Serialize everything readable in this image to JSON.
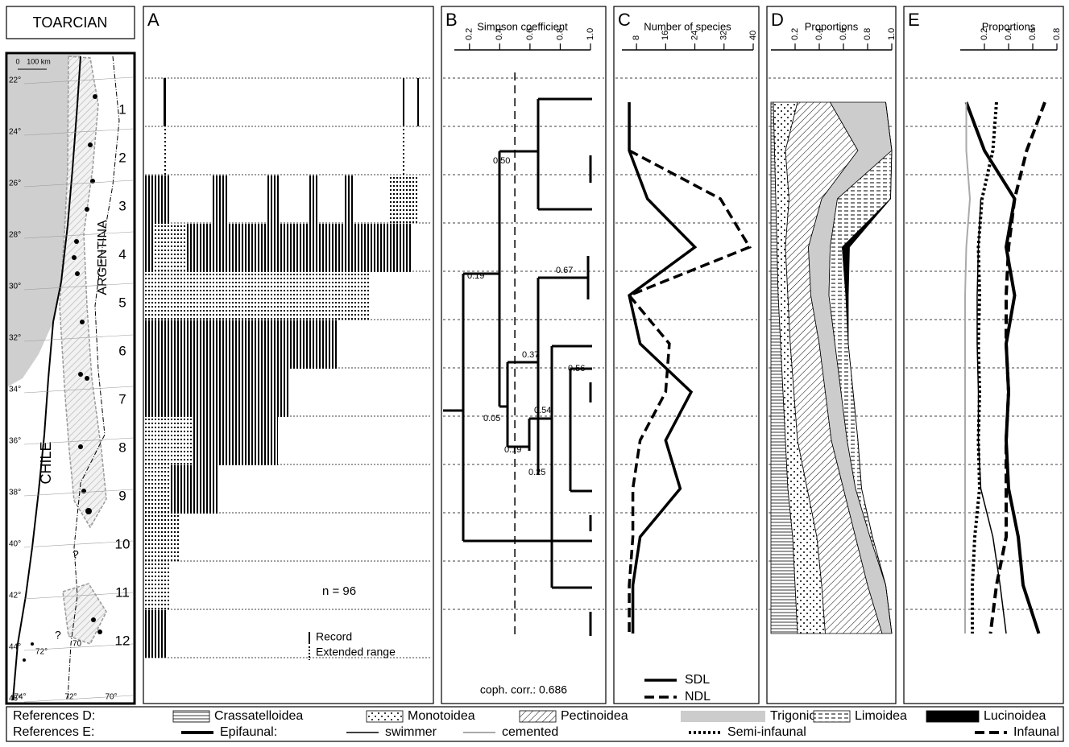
{
  "title": "TOARCIAN",
  "map": {
    "scale": [
      "0",
      "100 km"
    ],
    "latitudes": [
      "22°",
      "24°",
      "26°",
      "28°",
      "30°",
      "32°",
      "34°",
      "36°",
      "38°",
      "40°",
      "42°",
      "44°",
      "46°"
    ],
    "longitudes": [
      "74°",
      "72°",
      "70°"
    ],
    "inner_labels": [
      "72°",
      "70"
    ],
    "countries": [
      "CHILE",
      "ARGENTINA"
    ],
    "queries": [
      "?",
      "?"
    ],
    "zones": [
      "1",
      "2",
      "3",
      "4",
      "5",
      "6",
      "7",
      "8",
      "9",
      "10",
      "11",
      "12"
    ]
  },
  "chart_data": [
    {
      "type": "range",
      "panel": "A",
      "note": "n = 96",
      "legend": [
        "Record",
        "Extended range"
      ]
    },
    {
      "type": "dendrogram",
      "panel": "B",
      "title": "Simpson coefficient",
      "xlim": [
        0.1,
        1.0
      ],
      "xticks": [
        0.2,
        0.4,
        0.6,
        0.8,
        {
          "value": 1.0,
          "label": "1.0"
        }
      ],
      "cutoff": 0.5,
      "node_labels": [
        "0.50",
        "0.19",
        "0.67",
        "0.37",
        "0.56",
        "0.05",
        "0.54",
        "0.19",
        "0.25"
      ],
      "annotation": "coph. corr.: 0.686"
    },
    {
      "type": "line",
      "panel": "C",
      "title": "Number of species",
      "xlim": [
        4,
        40
      ],
      "xticks": [
        8,
        16,
        24,
        32,
        40
      ],
      "series": [
        {
          "name": "SDL",
          "color": "#000000",
          "line_style": "solid",
          "width": 3.5,
          "values": [
            6,
            6,
            11,
            24,
            6,
            9,
            23,
            16,
            20,
            9,
            7,
            7
          ]
        },
        {
          "name": "NDL",
          "color": "#000000",
          "line_style": "dashed",
          "width": 3.5,
          "values": [
            null,
            6,
            31,
            39,
            6,
            17,
            16,
            9,
            7,
            7,
            6,
            6
          ]
        }
      ]
    },
    {
      "type": "stacked_area",
      "panel": "D",
      "title": "Proportions",
      "xlim": [
        0,
        1.0
      ],
      "xticks": [
        0.2,
        0.4,
        0.6,
        0.8,
        {
          "value": 1.0,
          "label": "1.0"
        }
      ],
      "series": [
        {
          "name": "Crassatelloidea",
          "color": "#000000",
          "fill": "hlines",
          "values": [
            0.02,
            0.03,
            0.04,
            0.05,
            0.06,
            0.08,
            0.1,
            0.12,
            0.14,
            0.18,
            0.2,
            0.22
          ]
        },
        {
          "name": "Monotoidea",
          "color": "#000000",
          "fill": "dots",
          "values": [
            0.2,
            0.09,
            0.11,
            0.07,
            0.08,
            0.08,
            0.09,
            0.1,
            0.16,
            0.2,
            0.22,
            0.23
          ]
        },
        {
          "name": "Pectinoidea",
          "color": "#000000",
          "fill": "diag",
          "values": [
            0.27,
            0.6,
            0.27,
            0.19,
            0.19,
            0.24,
            0.26,
            0.28,
            0.3,
            0.32,
            0.38,
            0.47
          ]
        },
        {
          "name": "Trigonioidea",
          "color": "#cccccc",
          "fill": "solid",
          "values": [
            0.46,
            0.28,
            0.13,
            0.18,
            0.15,
            0.13,
            0.13,
            0.13,
            0.1,
            0.12,
            0.15,
            0.08
          ]
        },
        {
          "name": "Limoidea",
          "color": "#000000",
          "fill": "hdash",
          "values": [
            0,
            0,
            0.44,
            0.1,
            0.14,
            0.11,
            0.1,
            0.09,
            0.05,
            0.02,
            0,
            0
          ]
        },
        {
          "name": "Lucinoidea",
          "color": "#000000",
          "fill": "solid",
          "values": [
            0,
            0,
            0,
            0.06,
            0.02,
            0,
            0,
            0,
            0,
            0,
            0,
            0
          ]
        }
      ]
    },
    {
      "type": "line",
      "panel": "E",
      "title": "Proportions",
      "xlim": [
        0,
        0.8
      ],
      "xticks": [
        0.2,
        0.4,
        0.6,
        0.8
      ],
      "series": [
        {
          "name": "Epifaunal:",
          "color": "#000000",
          "line_style": "solid",
          "width": 4,
          "values": [
            0.05,
            0.2,
            0.45,
            0.38,
            0.45,
            0.38,
            0.4,
            0.38,
            0.4,
            0.48,
            0.52,
            0.65
          ]
        },
        {
          "name": "swimmer",
          "color": "#000000",
          "line_style": "solid",
          "width": 1.5,
          "values": [
            null,
            null,
            0.17,
            0.15,
            0.14,
            0.14,
            0.15,
            0.15,
            0.17,
            0.27,
            0.33,
            0.38
          ]
        },
        {
          "name": "cemented",
          "color": "#aaaaaa",
          "line_style": "solid",
          "width": 2,
          "values": [
            0.05,
            0.05,
            0.08,
            0.05,
            0.04,
            0.04,
            0.04,
            0.04,
            0.04,
            0.04,
            0.04,
            0.04
          ]
        },
        {
          "name": "Semi-infaunal",
          "color": "#000000",
          "line_style": "dotted",
          "width": 4,
          "values": [
            0.3,
            0.27,
            0.18,
            0.15,
            0.16,
            0.15,
            0.16,
            0.15,
            0.16,
            0.12,
            0.1,
            0.1
          ]
        },
        {
          "name": "Infaunal",
          "color": "#000000",
          "line_style": "dashed",
          "width": 4,
          "values": [
            0.7,
            0.55,
            0.45,
            0.4,
            0.38,
            0.38,
            0.4,
            0.38,
            0.38,
            0.38,
            0.3,
            0.25
          ]
        }
      ]
    }
  ],
  "references": {
    "d_label": "References D:",
    "e_label": "References E:"
  }
}
